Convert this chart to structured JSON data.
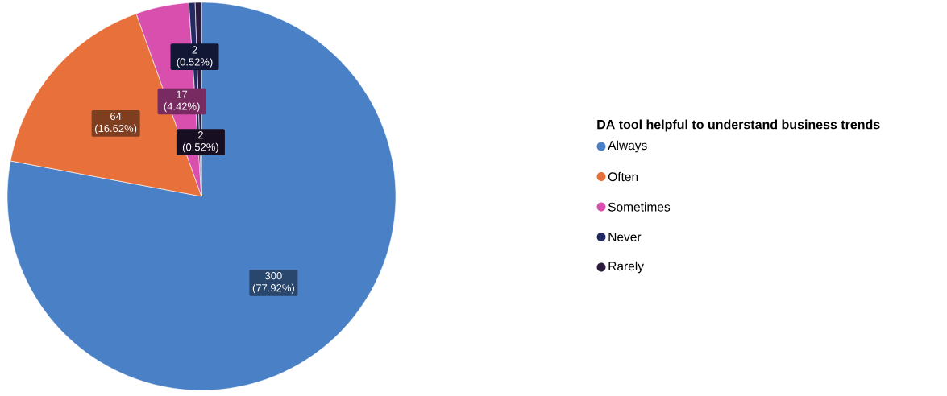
{
  "chart_data": {
    "type": "pie",
    "legend_title": "DA tool helpful to understand business trends",
    "categories": [
      "Always",
      "Often",
      "Sometimes",
      "Never",
      "Rarely"
    ],
    "values": [
      300,
      64,
      17,
      2,
      2
    ],
    "value_labels": [
      "300 (77.92%)",
      "64 (16.62%)",
      "17 (4.42%)",
      "2 (0.52%)",
      "2 (0.52%)"
    ],
    "colors": [
      "#4a80c6",
      "#e8703a",
      "#d94fae",
      "#232a63",
      "#2b1a3d"
    ],
    "legend": "right"
  }
}
